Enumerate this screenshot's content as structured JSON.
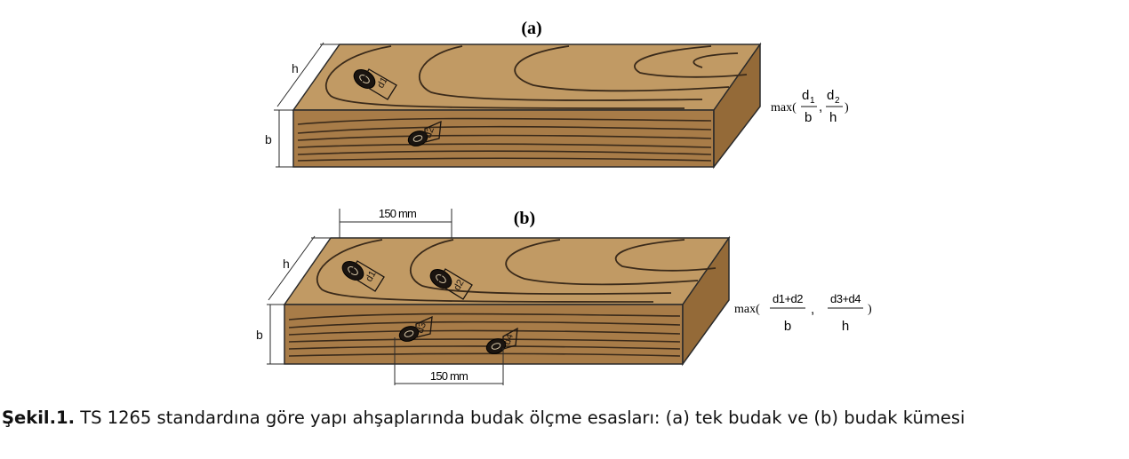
{
  "panel_a": {
    "label": "(a)",
    "dim_h": "h",
    "dim_b": "b",
    "knot_labels": [
      "d1",
      "d2"
    ],
    "formula": {
      "prefix": "max(",
      "n1": "d",
      "s1": "1",
      "d1": "b",
      "sep": ",",
      "n2": "d",
      "s2": "2",
      "d2": "h",
      "suffix": ")"
    }
  },
  "panel_b": {
    "label": "(b)",
    "dim_h": "h",
    "dim_b": "b",
    "dim_top": "150 mm",
    "dim_bottom": "150 mm",
    "knot_labels": [
      "d1",
      "d2",
      "d3",
      "d4"
    ],
    "formula": {
      "prefix": "max(",
      "n1": "d1+d2",
      "d1": "b",
      "sep": ",",
      "n2": "d3+d4",
      "d2": "h",
      "suffix": ")"
    }
  },
  "caption": {
    "bold": "Şekil.1.",
    "text": " TS 1265 standardına göre yapı ahşaplarında budak ölçme esasları: (a) tek budak ve (b) budak kümesi"
  },
  "colors": {
    "wood_top": "#c19a64",
    "wood_front": "#a87c48",
    "wood_side": "#946a38",
    "grain": "#3a2a1a",
    "edge": "#2a2a2a"
  }
}
